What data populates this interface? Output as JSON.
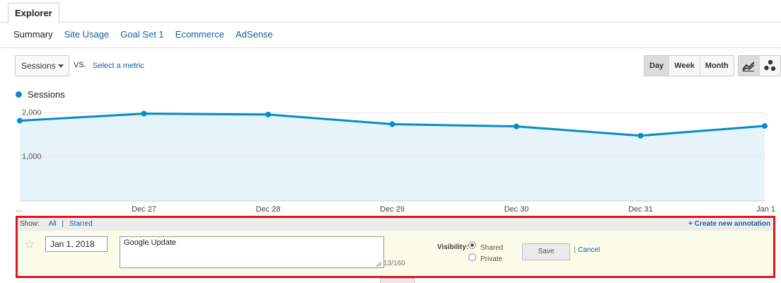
{
  "tabs": {
    "explorer": "Explorer"
  },
  "subnav": [
    {
      "label": "Summary",
      "active": true
    },
    {
      "label": "Site Usage"
    },
    {
      "label": "Goal Set 1"
    },
    {
      "label": "Ecommerce"
    },
    {
      "label": "AdSense"
    }
  ],
  "controls": {
    "metric": "Sessions",
    "vs_label": "VS.",
    "select_metric": "Select a metric",
    "range": [
      "Day",
      "Week",
      "Month"
    ],
    "range_selected": "Day",
    "view_modes": [
      "line-chart-icon",
      "motion-chart-icon"
    ]
  },
  "legend": {
    "series": "Sessions",
    "color": "#058dc7"
  },
  "chart_data": {
    "type": "area",
    "categories": [
      "...",
      "Dec 27",
      "Dec 28",
      "Dec 29",
      "Dec 30",
      "Dec 31",
      "Jan 1"
    ],
    "series": [
      {
        "name": "Sessions",
        "values": [
          1820,
          1980,
          1960,
          1740,
          1690,
          1480,
          1700
        ]
      }
    ],
    "ytick_labels": [
      "2,000",
      "1,000"
    ],
    "yticks": [
      2000,
      1000
    ],
    "ylim": [
      0,
      2150
    ],
    "grid": true,
    "line_color": "#058dc7",
    "fill_color": "#e6f3f9"
  },
  "annotation": {
    "show_label": "Show:",
    "all": "All",
    "separator": "|",
    "starred": "Starred",
    "create": "+ Create new annotation",
    "date": "Jan 1, 2018",
    "text": "Google Update",
    "counter": "13/160",
    "visibility_label": "Visibility:",
    "shared": "Shared",
    "private": "Private",
    "save": "Save",
    "cancel_sep": "|",
    "cancel": "Cancel"
  },
  "colors": {
    "accent": "#058dc7",
    "link": "#1a5e9a",
    "highlight": "#e0161c"
  }
}
